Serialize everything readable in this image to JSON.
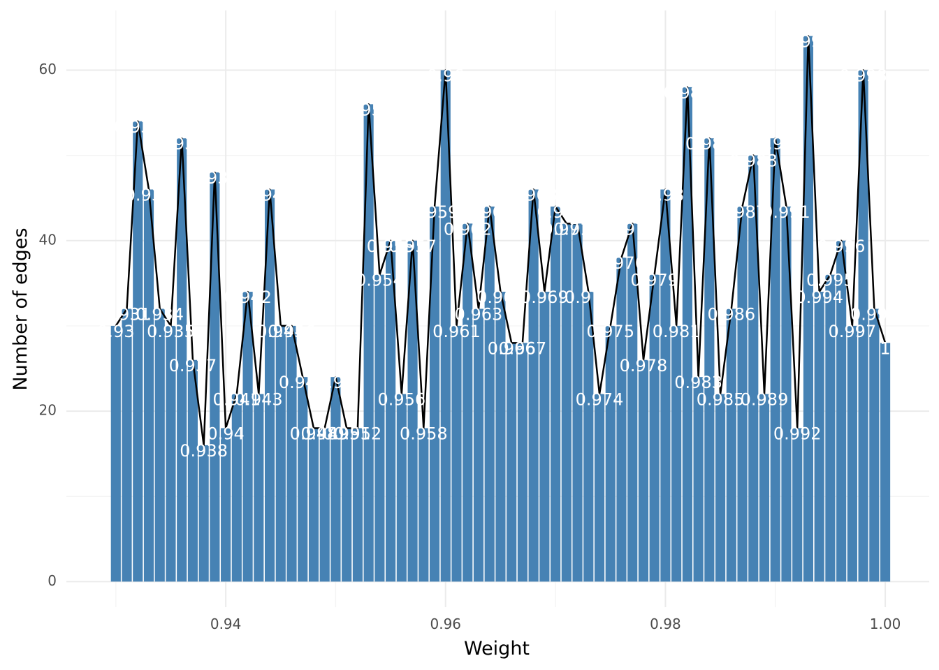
{
  "chart_data": {
    "type": "bar",
    "title": "",
    "xlabel": "Weight",
    "ylabel": "Number of edges",
    "xlim": [
      0.9255,
      1.004
    ],
    "ylim": [
      -3,
      67
    ],
    "x_ticks": [
      "0.94",
      "0.96",
      "0.98",
      "1.00"
    ],
    "x_tick_values": [
      0.94,
      0.96,
      0.98,
      1.0
    ],
    "y_ticks": [
      "0",
      "20",
      "40",
      "60"
    ],
    "y_tick_values": [
      0,
      20,
      40,
      60
    ],
    "grid": true,
    "legend": "none",
    "bar_color": "#4682b4",
    "line_color": "#000000",
    "label_color": "#ffffff",
    "x": [
      0.93,
      0.931,
      0.932,
      0.933,
      0.934,
      0.935,
      0.936,
      0.937,
      0.938,
      0.939,
      0.94,
      0.941,
      0.942,
      0.943,
      0.944,
      0.945,
      0.946,
      0.947,
      0.948,
      0.949,
      0.95,
      0.951,
      0.952,
      0.953,
      0.954,
      0.955,
      0.956,
      0.957,
      0.958,
      0.959,
      0.96,
      0.961,
      0.962,
      0.963,
      0.964,
      0.965,
      0.966,
      0.967,
      0.968,
      0.969,
      0.97,
      0.971,
      0.972,
      0.973,
      0.974,
      0.975,
      0.976,
      0.977,
      0.978,
      0.979,
      0.98,
      0.981,
      0.982,
      0.983,
      0.984,
      0.985,
      0.986,
      0.987,
      0.988,
      0.989,
      0.99,
      0.991,
      0.992,
      0.993,
      0.994,
      0.995,
      0.996,
      0.997,
      0.998,
      0.999,
      1.0
    ],
    "values": [
      30,
      32,
      54,
      46,
      32,
      30,
      52,
      26,
      16,
      48,
      18,
      22,
      34,
      22,
      46,
      30,
      30,
      24,
      18,
      18,
      24,
      18,
      18,
      56,
      36,
      40,
      22,
      40,
      18,
      44,
      60,
      30,
      42,
      32,
      44,
      34,
      28,
      28,
      46,
      34,
      44,
      42,
      42,
      34,
      22,
      30,
      38,
      42,
      26,
      36,
      46,
      30,
      58,
      24,
      52,
      22,
      32,
      44,
      50,
      22,
      52,
      44,
      18,
      64,
      34,
      36,
      40,
      30,
      60,
      32,
      28
    ],
    "labels": [
      "0.93",
      "0.931",
      "0.932",
      "0.933",
      "0.934",
      "0.935",
      "0.936",
      "0.937",
      "0.938",
      "0.939",
      "0.94",
      "0.941",
      "0.942",
      "0.943",
      "0.944",
      "0.945",
      "0.946",
      "0.947",
      "0.948",
      "0.949",
      "0.95",
      "0.951",
      "0.952",
      "0.953",
      "0.954",
      "0.955",
      "0.956",
      "0.957",
      "0.958",
      "0.959",
      "0.96",
      "0.961",
      "0.962",
      "0.963",
      "0.964",
      "0.965",
      "0.966",
      "0.967",
      "0.968",
      "0.969",
      "0.97",
      "0.971",
      "0.972",
      "0.973",
      "0.974",
      "0.975",
      "0.976",
      "0.977",
      "0.978",
      "0.979",
      "0.98",
      "0.981",
      "0.982",
      "0.983",
      "0.984",
      "0.985",
      "0.986",
      "0.987",
      "0.988",
      "0.989",
      "0.99",
      "0.991",
      "0.992",
      "0.993",
      "0.994",
      "0.995",
      "0.996",
      "0.997",
      "0.998",
      "0.999",
      "1"
    ]
  }
}
